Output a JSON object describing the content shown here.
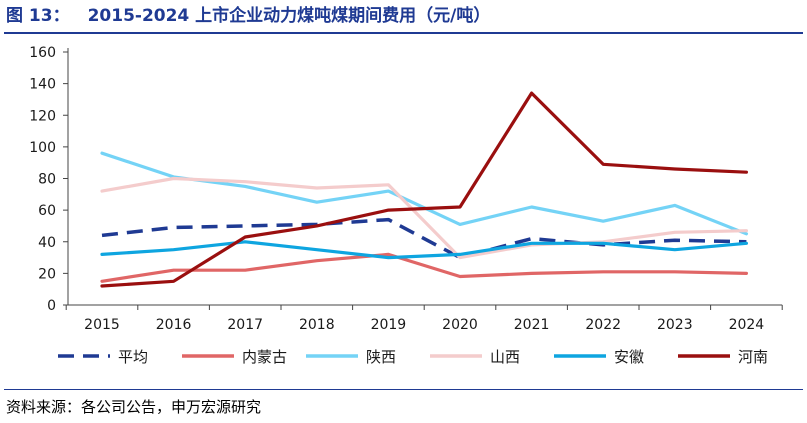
{
  "header": {
    "figure_number": "图 13：",
    "title": "2015-2024 上市企业动力煤吨煤期间费用（元/吨）"
  },
  "footer": {
    "source": "资料来源：各公司公告，申万宏源研究"
  },
  "chart_data": {
    "type": "line",
    "title": "2015-2024 上市企业动力煤吨煤期间费用（元/吨）",
    "xlabel": "",
    "ylabel": "",
    "x": [
      "2015",
      "2016",
      "2017",
      "2018",
      "2019",
      "2020",
      "2021",
      "2022",
      "2023",
      "2024"
    ],
    "ylim": [
      0,
      160
    ],
    "yticks": [
      0,
      20,
      40,
      60,
      80,
      100,
      120,
      140,
      160
    ],
    "grid": false,
    "legend_position": "bottom",
    "series": [
      {
        "name": "平均",
        "color": "#1f3a93",
        "dash": true,
        "values": [
          44,
          49,
          50,
          51,
          54,
          30,
          42,
          38,
          41,
          40
        ]
      },
      {
        "name": "内蒙古",
        "color": "#e06666",
        "values": [
          15,
          22,
          22,
          28,
          32,
          18,
          20,
          21,
          21,
          20
        ]
      },
      {
        "name": "陕西",
        "color": "#74d3f6",
        "values": [
          96,
          81,
          75,
          65,
          72,
          51,
          62,
          53,
          63,
          45
        ]
      },
      {
        "name": "山西",
        "color": "#f4cccc",
        "values": [
          72,
          80,
          78,
          74,
          76,
          30,
          38,
          40,
          46,
          47
        ]
      },
      {
        "name": "安徽",
        "color": "#0ea5e0",
        "values": [
          32,
          35,
          40,
          35,
          30,
          32,
          39,
          39,
          35,
          39
        ]
      },
      {
        "name": "河南",
        "color": "#9a0f0f",
        "values": [
          12,
          15,
          43,
          50,
          60,
          62,
          134,
          89,
          86,
          84
        ]
      }
    ]
  }
}
